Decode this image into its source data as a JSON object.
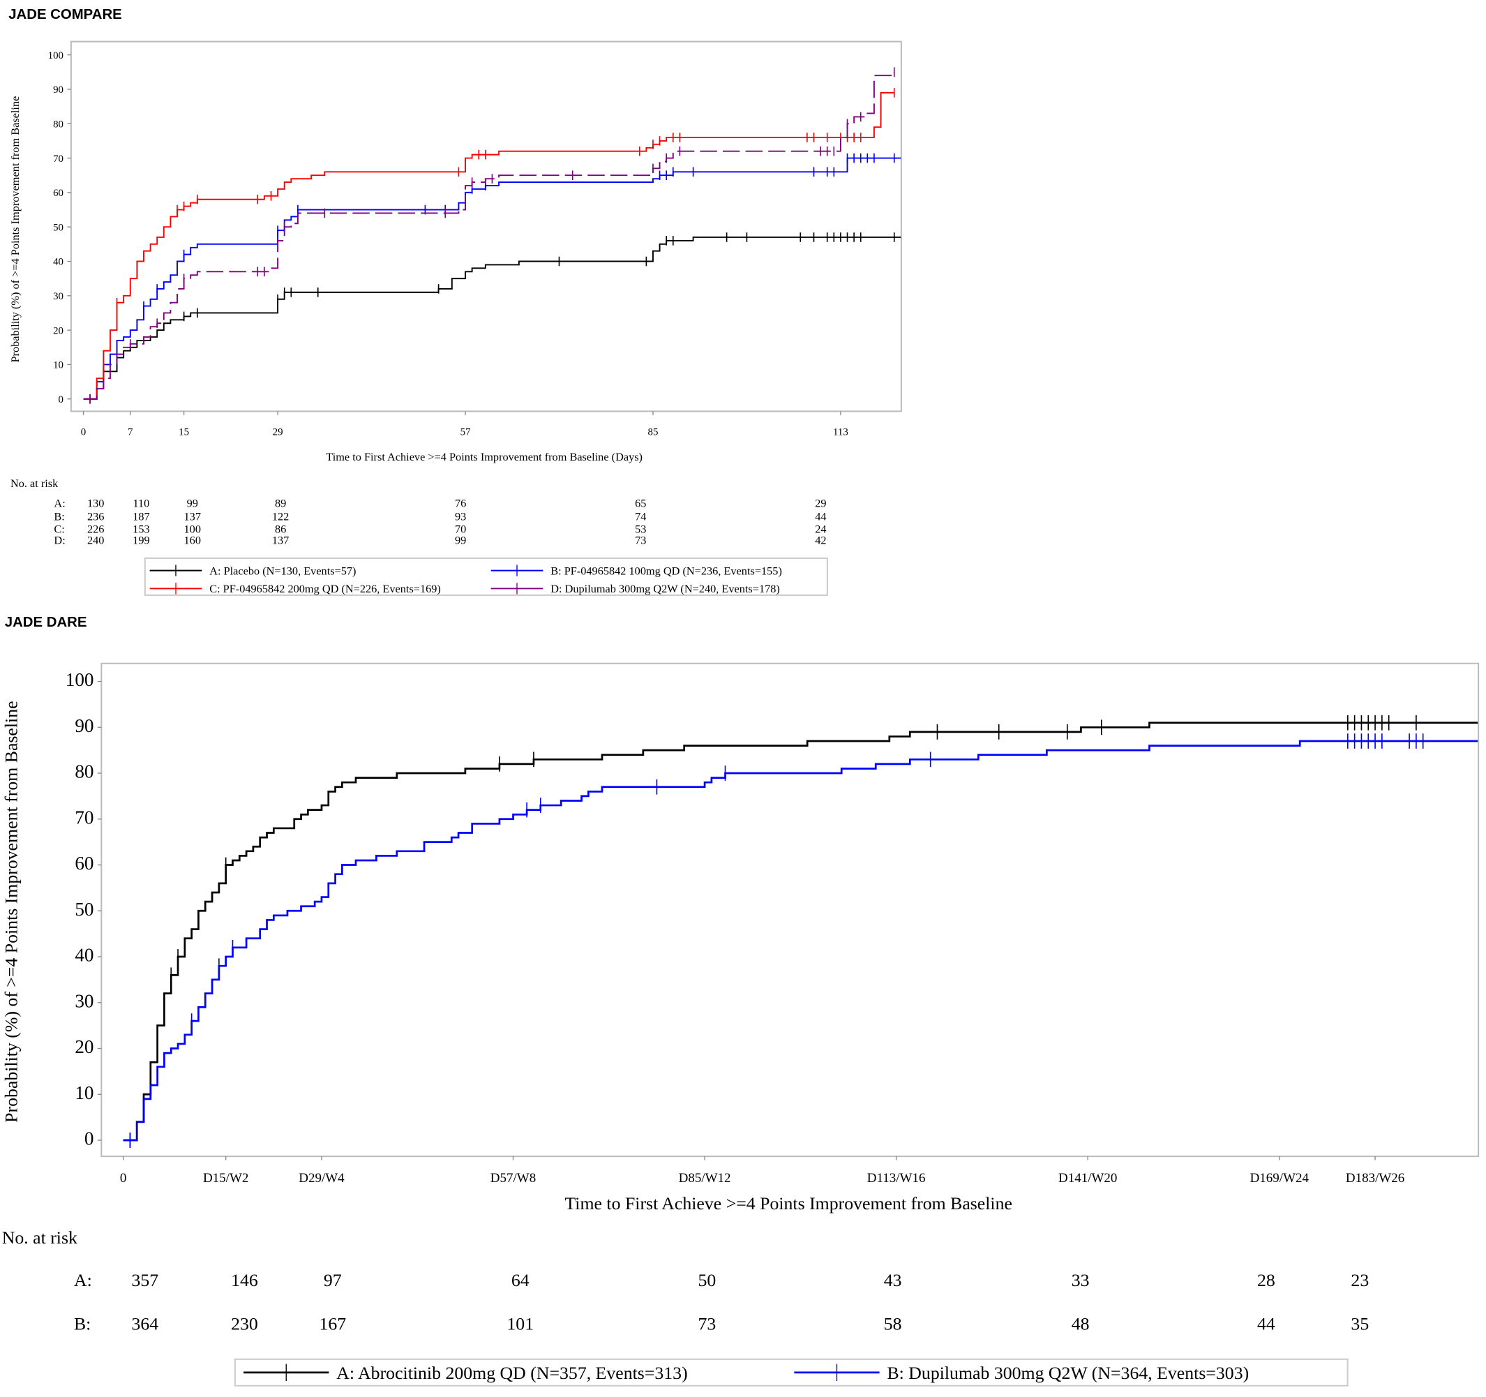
{
  "chart_data": [
    {
      "type": "line",
      "heading": "JADE COMPARE",
      "xlabel": "Time to First Achieve >=4 Points Improvement from Baseline (Days)",
      "ylabel": "Probability (%) of >=4 Points Improvement from Baseline",
      "xlim": [
        0,
        122
      ],
      "ylim": [
        0,
        100
      ],
      "x_ticks": [
        0,
        7,
        15,
        29,
        57,
        85,
        113
      ],
      "x_tick_labels": [
        "0",
        "7",
        "15",
        "29",
        "57",
        "85",
        "113"
      ],
      "y_ticks": [
        0,
        10,
        20,
        30,
        40,
        50,
        60,
        70,
        80,
        90,
        100
      ],
      "grid": false,
      "legend_position": "bottom",
      "at_risk_label": "No. at risk",
      "at_risk": [
        {
          "group": "A:",
          "values": [
            "130",
            "110",
            "99",
            "89",
            "76",
            "65",
            "29"
          ]
        },
        {
          "group": "B:",
          "values": [
            "236",
            "187",
            "137",
            "122",
            "93",
            "74",
            "44"
          ]
        },
        {
          "group": "C:",
          "values": [
            "226",
            "153",
            "100",
            "86",
            "70",
            "53",
            "24"
          ]
        },
        {
          "group": "D:",
          "values": [
            "240",
            "199",
            "160",
            "137",
            "99",
            "73",
            "42"
          ]
        }
      ],
      "series": [
        {
          "name": "A: Placebo (N=130, Events=57)",
          "color": "#000000",
          "dash": false,
          "x": [
            0,
            1,
            2,
            3,
            5,
            6,
            7,
            8,
            10,
            11,
            12,
            13,
            15,
            16,
            28,
            29,
            30,
            52,
            53,
            55,
            57,
            58,
            60,
            65,
            84,
            85,
            86,
            87,
            91,
            122
          ],
          "y": [
            0,
            0,
            3,
            8,
            12,
            14,
            15,
            17,
            18,
            20,
            22,
            23,
            24,
            25,
            25,
            29,
            31,
            31,
            32,
            35,
            37,
            38,
            39,
            40,
            40,
            43,
            45,
            46,
            47,
            47
          ],
          "censored": [
            1,
            15,
            17,
            29,
            30,
            31,
            35,
            53,
            71,
            84,
            87,
            88,
            96,
            99,
            107,
            109,
            111,
            112,
            113,
            114,
            115,
            116,
            121
          ]
        },
        {
          "name": "B: PF-04965842 100mg QD (N=236, Events=155)",
          "color": "#0000ff",
          "dash": false,
          "x": [
            0,
            1,
            2,
            3,
            4,
            5,
            6,
            7,
            8,
            9,
            10,
            11,
            12,
            13,
            14,
            15,
            16,
            17,
            28,
            29,
            30,
            31,
            32,
            54,
            56,
            57,
            58,
            60,
            62,
            84,
            85,
            86,
            88,
            113,
            114,
            122
          ],
          "y": [
            0,
            0,
            5,
            10,
            13,
            17,
            18,
            20,
            23,
            27,
            29,
            32,
            34,
            36,
            40,
            42,
            44,
            45,
            45,
            49,
            52,
            53,
            55,
            55,
            57,
            60,
            61,
            62,
            63,
            63,
            64,
            65,
            66,
            66,
            70,
            70
          ],
          "censored": [
            1,
            9,
            11,
            15,
            29,
            32,
            51,
            54,
            58,
            60,
            86,
            87,
            88,
            91,
            109,
            111,
            112,
            114,
            115,
            116,
            117,
            118,
            121
          ]
        },
        {
          "name": "C: PF-04965842 200mg QD (N=226, Events=169)",
          "color": "#ff0000",
          "dash": false,
          "x": [
            0,
            1,
            2,
            3,
            4,
            5,
            6,
            7,
            8,
            9,
            10,
            11,
            12,
            13,
            14,
            15,
            16,
            17,
            26,
            27,
            29,
            30,
            31,
            34,
            36,
            56,
            57,
            58,
            60,
            62,
            83,
            84,
            85,
            86,
            87,
            117,
            118,
            119,
            121
          ],
          "y": [
            0,
            0,
            6,
            14,
            20,
            28,
            30,
            35,
            40,
            43,
            45,
            47,
            50,
            53,
            55,
            56,
            57,
            58,
            58,
            59,
            61,
            63,
            64,
            65,
            66,
            66,
            70,
            71,
            71,
            72,
            72,
            73,
            74,
            75,
            76,
            76,
            79,
            89,
            89
          ],
          "censored": [
            1,
            5,
            14,
            15,
            17,
            26,
            28,
            56,
            59,
            60,
            83,
            85,
            86,
            88,
            89,
            108,
            109,
            111,
            113,
            114,
            115,
            116,
            121
          ]
        },
        {
          "name": "D: Dupilumab 300mg Q2W (N=240, Events=178)",
          "color": "#800080",
          "dash": true,
          "x": [
            0,
            1,
            2,
            3,
            4,
            5,
            6,
            7,
            9,
            10,
            11,
            12,
            13,
            14,
            15,
            16,
            17,
            28,
            29,
            30,
            31,
            32,
            56,
            57,
            58,
            60,
            62,
            84,
            85,
            86,
            87,
            88,
            112,
            113,
            114,
            115,
            117,
            118,
            121
          ],
          "y": [
            0,
            0,
            3,
            6,
            10,
            13,
            15,
            16,
            18,
            21,
            22,
            25,
            28,
            32,
            35,
            36,
            37,
            38,
            46,
            50,
            51,
            54,
            55,
            62,
            63,
            64,
            65,
            65,
            67,
            69,
            70,
            72,
            72,
            76,
            80,
            82,
            83,
            94,
            95
          ],
          "censored": [
            1,
            7,
            11,
            15,
            26,
            27,
            30,
            36,
            54,
            58,
            61,
            73,
            85,
            87,
            89,
            110,
            111,
            112,
            114,
            116,
            121
          ]
        }
      ]
    },
    {
      "type": "line",
      "heading": "JADE DARE",
      "xlabel": "Time to First Achieve >=4 Points Improvement from Baseline",
      "ylabel": "Probability (%) of >=4 Points Improvement from Baseline",
      "xlim": [
        0,
        198
      ],
      "ylim": [
        0,
        100
      ],
      "x_ticks": [
        0,
        15,
        29,
        57,
        85,
        113,
        141,
        169,
        183
      ],
      "x_tick_labels": [
        "0",
        "D15/W2",
        "D29/W4",
        "D57/W8",
        "D85/W12",
        "D113/W16",
        "D141/W20",
        "D169/W24",
        "D183/W26"
      ],
      "y_ticks": [
        0,
        10,
        20,
        30,
        40,
        50,
        60,
        70,
        80,
        90,
        100
      ],
      "grid": false,
      "legend_position": "bottom",
      "at_risk_label": "No. at risk",
      "at_risk": [
        {
          "group": "A:",
          "values": [
            "357",
            "146",
            "97",
            "64",
            "50",
            "43",
            "33",
            "28",
            "23"
          ]
        },
        {
          "group": "B:",
          "values": [
            "364",
            "230",
            "167",
            "101",
            "73",
            "58",
            "48",
            "44",
            "35"
          ]
        }
      ],
      "series": [
        {
          "name": "A: Abrocitinib 200mg QD (N=357, Events=313)",
          "color": "#000000",
          "dash": false,
          "x": [
            0,
            1,
            2,
            3,
            4,
            5,
            6,
            7,
            8,
            9,
            10,
            11,
            12,
            13,
            14,
            15,
            16,
            17,
            18,
            19,
            20,
            21,
            22,
            24,
            25,
            26,
            27,
            29,
            30,
            31,
            32,
            34,
            38,
            40,
            44,
            50,
            55,
            60,
            65,
            70,
            76,
            82,
            100,
            112,
            115,
            120,
            140,
            150,
            198
          ],
          "y": [
            0,
            0,
            4,
            10,
            17,
            25,
            32,
            36,
            40,
            44,
            46,
            50,
            52,
            54,
            56,
            60,
            61,
            62,
            63,
            64,
            66,
            67,
            68,
            68,
            70,
            71,
            72,
            73,
            76,
            77,
            78,
            79,
            79,
            80,
            80,
            81,
            82,
            83,
            83,
            84,
            85,
            86,
            87,
            88,
            89,
            89,
            90,
            91,
            91
          ],
          "censored": [
            1,
            7,
            8,
            15,
            55,
            60,
            119,
            128,
            138,
            143,
            179,
            180,
            181,
            182,
            183,
            184,
            185,
            189
          ]
        },
        {
          "name": "B: Dupilumab 300mg Q2W (N=364, Events=303)",
          "color": "#0000ff",
          "dash": false,
          "x": [
            0,
            1,
            2,
            3,
            4,
            5,
            6,
            7,
            8,
            9,
            10,
            11,
            12,
            13,
            14,
            15,
            16,
            18,
            20,
            21,
            22,
            24,
            26,
            28,
            29,
            30,
            31,
            32,
            34,
            37,
            40,
            44,
            48,
            49,
            51,
            55,
            57,
            59,
            61,
            64,
            67,
            68,
            70,
            84,
            85,
            86,
            88,
            100,
            105,
            110,
            115,
            125,
            135,
            140,
            150,
            170,
            172,
            198
          ],
          "y": [
            0,
            0,
            4,
            9,
            12,
            16,
            19,
            20,
            21,
            23,
            26,
            29,
            32,
            35,
            38,
            40,
            42,
            44,
            46,
            48,
            49,
            50,
            51,
            52,
            53,
            56,
            58,
            60,
            61,
            62,
            63,
            65,
            66,
            67,
            69,
            70,
            71,
            72,
            73,
            74,
            75,
            76,
            77,
            77,
            78,
            79,
            80,
            80,
            81,
            82,
            83,
            84,
            85,
            85,
            86,
            86,
            87,
            87
          ],
          "censored": [
            1,
            10,
            14,
            16,
            59,
            61,
            78,
            88,
            118,
            179,
            180,
            181,
            182,
            183,
            184,
            188,
            189,
            190
          ]
        }
      ]
    }
  ]
}
